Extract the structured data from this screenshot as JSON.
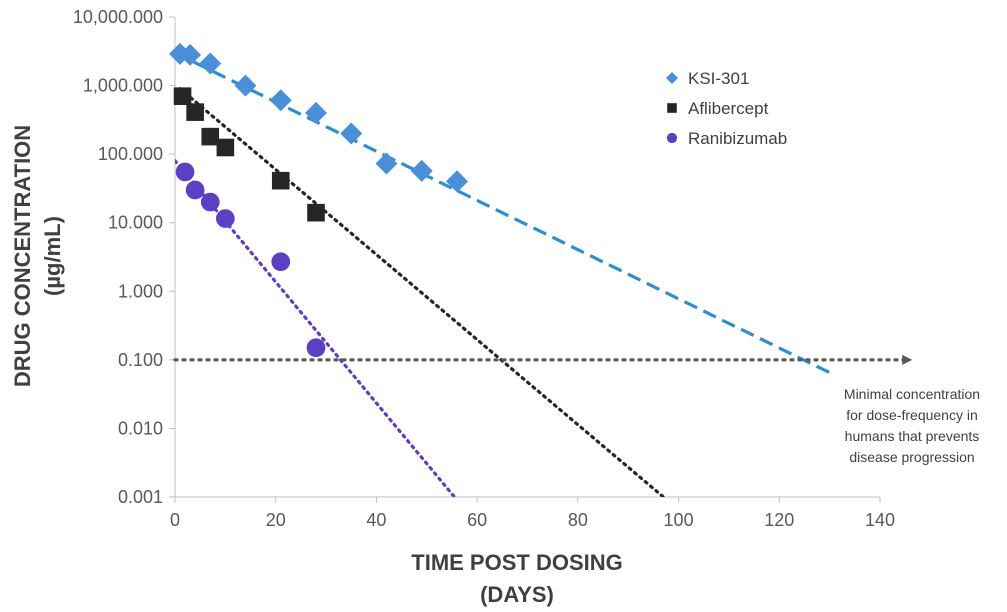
{
  "chart_data": {
    "type": "scatter",
    "yscale": "log",
    "xlim": [
      0,
      140
    ],
    "ylim": [
      0.001,
      10000
    ],
    "x_ticks": [
      "0",
      "20",
      "40",
      "60",
      "80",
      "100",
      "120",
      "140"
    ],
    "y_ticks": [
      "0.001",
      "0.010",
      "0.100",
      "1.000",
      "10.000",
      "100.000",
      "1,000.000",
      "10,000.000"
    ],
    "xlabel": [
      "TIME POST DOSING",
      "(DAYS)"
    ],
    "ylabel": [
      "DRUG CONCENTRATION",
      "(µg/mL)"
    ],
    "legend_position": "top-right",
    "series": [
      {
        "name": "KSI-301",
        "marker": "diamond",
        "color": "#4a90d9",
        "trend_color": "#2e8fd0",
        "trend_style": "dashed",
        "trend": [
          [
            0,
            3000
          ],
          [
            131,
            0.06
          ]
        ],
        "points": [
          [
            1,
            2900
          ],
          [
            3,
            2800
          ],
          [
            7,
            2100
          ],
          [
            14,
            1000
          ],
          [
            21,
            610
          ],
          [
            28,
            400
          ],
          [
            35,
            200
          ],
          [
            42,
            73
          ],
          [
            49,
            57
          ],
          [
            56,
            40
          ]
        ]
      },
      {
        "name": "Aflibercept",
        "marker": "square",
        "color": "#262626",
        "trend_color": "#262626",
        "trend_style": "dotted",
        "trend": [
          [
            1,
            900
          ],
          [
            97,
            0.001
          ]
        ],
        "points": [
          [
            1.5,
            700
          ],
          [
            4,
            410
          ],
          [
            7,
            180
          ],
          [
            10,
            125
          ],
          [
            21,
            41
          ],
          [
            28,
            14
          ]
        ]
      },
      {
        "name": "Ranibizumab",
        "marker": "circle",
        "color": "#5b3fc4",
        "trend_color": "#5b3fc4",
        "trend_style": "dotted",
        "trend": [
          [
            0,
            80
          ],
          [
            55.5,
            0.001
          ]
        ],
        "points": [
          [
            2,
            55
          ],
          [
            4,
            30
          ],
          [
            7,
            20
          ],
          [
            10,
            11.5
          ],
          [
            21,
            2.7
          ],
          [
            28,
            0.15
          ]
        ]
      }
    ],
    "threshold": {
      "y": 0.1,
      "x_from": 0,
      "x_to": 146,
      "color": "#595959",
      "label_lines": [
        "Minimal concentration",
        "for dose-frequency in",
        "humans that prevents",
        "disease progression"
      ]
    }
  }
}
